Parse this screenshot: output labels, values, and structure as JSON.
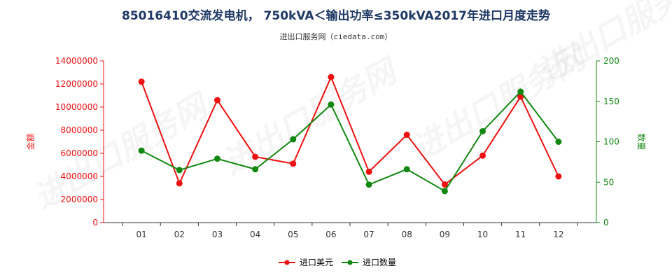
{
  "title": "85016410交流发电机， 750kVA＜输出功率≤350kVA2017年进口月度走势",
  "subtitle": "进出口服务网（ciedata.com）",
  "colors": {
    "value": "#ee1111",
    "quantity": "#118811",
    "title": "#1f3864"
  },
  "chart_data": {
    "type": "line",
    "title": "85016410交流发电机， 750kVA＜输出功率≤350kVA2017年进口月度走势",
    "categories": [
      "01",
      "02",
      "03",
      "04",
      "05",
      "06",
      "07",
      "08",
      "09",
      "10",
      "11",
      "12"
    ],
    "series": [
      {
        "name": "进口美元",
        "axis": "left",
        "color": "#ee1111",
        "values": [
          12200000,
          3400000,
          10600000,
          5700000,
          5100000,
          12600000,
          4400000,
          7600000,
          3300000,
          5800000,
          10900000,
          4000000
        ]
      },
      {
        "name": "进口数量",
        "axis": "right",
        "color": "#118811",
        "values": [
          89,
          65,
          79,
          66,
          103,
          146,
          47,
          66,
          39,
          113,
          162,
          100
        ]
      }
    ],
    "ylabel": "金额",
    "y2label": "数量",
    "ylim": [
      0,
      14000000
    ],
    "y2lim": [
      0,
      200
    ],
    "yticks": [
      "0",
      "2000000",
      "4000000",
      "6000000",
      "8000000",
      "10000000",
      "12000000",
      "14000000"
    ],
    "y2ticks": [
      "0",
      "50",
      "100",
      "150",
      "200"
    ],
    "grid": false,
    "legend": "bottom"
  },
  "watermark": "进出口服务网"
}
